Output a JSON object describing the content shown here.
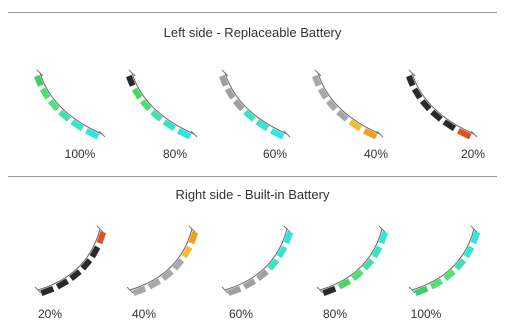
{
  "left_section": {
    "title": "Left side - Replaceable Battery",
    "gauges": [
      {
        "label": "100%",
        "level": 1.0
      },
      {
        "label": "80%",
        "level": 0.8
      },
      {
        "label": "60%",
        "level": 0.6
      },
      {
        "label": "40%",
        "level": 0.4
      },
      {
        "label": "20%",
        "level": 0.2
      }
    ]
  },
  "right_section": {
    "title": "Right side - Built-in Battery",
    "gauges": [
      {
        "label": "20%",
        "level": 0.2
      },
      {
        "label": "40%",
        "level": 0.4
      },
      {
        "label": "60%",
        "level": 0.6
      },
      {
        "label": "80%",
        "level": 0.8
      },
      {
        "label": "100%",
        "level": 1.0
      }
    ]
  },
  "colors": {
    "level_100": [
      "#3ad16a",
      "#4ee06a",
      "#52e07a",
      "#3ee0b0",
      "#35e5d0",
      "#30e6e0"
    ],
    "level_80": [
      "#2a2a2a",
      "#46d860",
      "#4ee070",
      "#40e0a8",
      "#36e4cc",
      "#30e6e0"
    ],
    "level_60": [
      "#a0a0a0",
      "#a0a0a0",
      "#a0a0a0",
      "#38e3c0",
      "#33e5d6",
      "#30e6e0"
    ],
    "level_40": [
      "#a8a8a8",
      "#a8a8a8",
      "#a8a8a8",
      "#a8a8a8",
      "#f0c030",
      "#f0a020"
    ],
    "level_20": [
      "#2a2a2a",
      "#2a2a2a",
      "#2a2a2a",
      "#2a2a2a",
      "#2a2a2a",
      "#e05020"
    ]
  }
}
